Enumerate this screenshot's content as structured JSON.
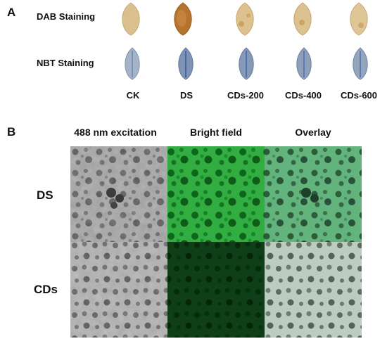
{
  "panel_a": {
    "letter": "A",
    "row_labels": [
      "DAB Staining",
      "NBT Staining"
    ],
    "column_labels": [
      "CK",
      "DS",
      "CDs-200",
      "CDs-400",
      "CDs-600"
    ],
    "dab_leaf_colors": [
      "#d9c08e",
      "#b5742e",
      "#d7ae6c",
      "#d5ad6a",
      "#d9bc80"
    ],
    "nbt_leaf_colors": [
      "#8fa3bd",
      "#6f88ad",
      "#7a8fb0",
      "#8597b5",
      "#8a99b4"
    ]
  },
  "panel_b": {
    "letter": "B",
    "column_labels": [
      "488 nm excitation",
      "Bright field",
      "Overlay"
    ],
    "row_labels": [
      "DS",
      "CDs"
    ],
    "tile_colors": {
      "gray_base": "#9a9a9a",
      "green_bright": "#2f9e3c",
      "green_dark": "#0d3a14",
      "overlay_bright": "#5cae77",
      "overlay_pale": "#b7c9bb"
    }
  }
}
